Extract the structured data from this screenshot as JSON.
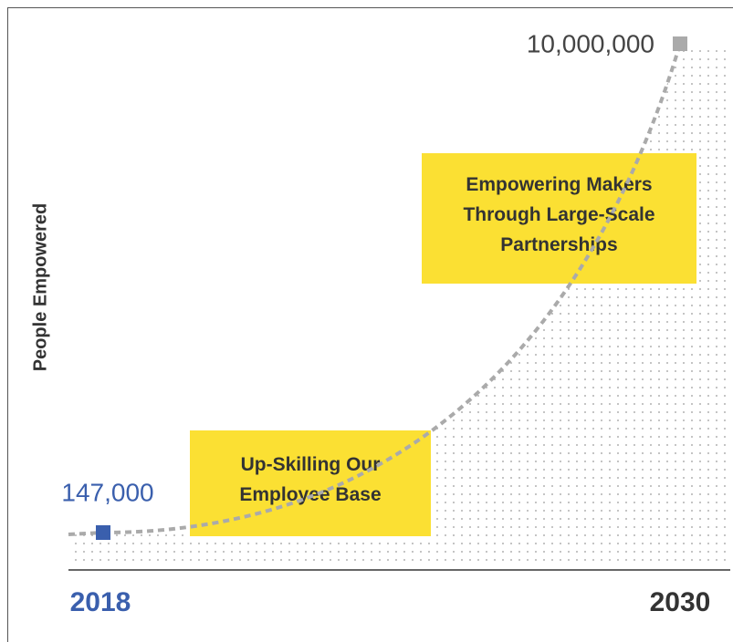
{
  "chart_data": {
    "type": "line",
    "y_label": "People Empowered",
    "categories": [
      "2018",
      "2030"
    ],
    "category_colors": [
      "#3a5fad",
      "#333333"
    ],
    "series": [
      {
        "name": "People Empowered",
        "color": "#aaaaaa",
        "values": [
          147000,
          10000000
        ],
        "value_labels": [
          "147,000",
          "10,000,000"
        ],
        "point_colors": [
          "#3a5fad",
          "#aaaaaa"
        ],
        "label_colors": [
          "#3a5fad",
          "#444444"
        ]
      }
    ],
    "annotations": [
      {
        "lines": [
          "Up-Skilling Our",
          "Employee Base"
        ]
      },
      {
        "lines": [
          "Empowering Makers",
          "Through Large-Scale",
          "Partnerships"
        ]
      }
    ],
    "annotation_color": "#fbe033"
  }
}
